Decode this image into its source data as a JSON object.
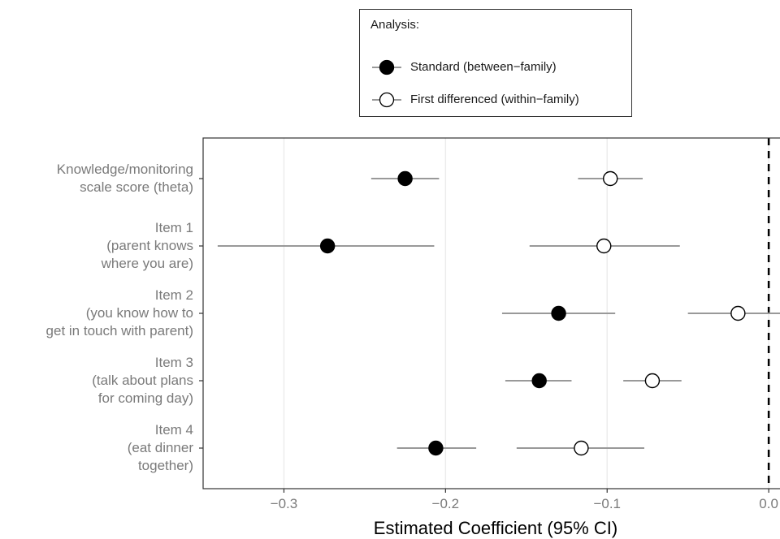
{
  "chart_data": {
    "type": "scatter",
    "subtype": "dot-and-whisker",
    "title": "",
    "xlabel": "Estimated Coefficient (95% CI)",
    "ylabel": "",
    "xlim": [
      -0.35,
      0.012
    ],
    "x_ticks": [
      -0.3,
      -0.2,
      -0.1,
      0.0
    ],
    "x_tick_labels": [
      "−0.3",
      "−0.2",
      "−0.1",
      "0.0"
    ],
    "reference_line": {
      "x": 0.0,
      "style": "dashed"
    },
    "grid": "vertical major",
    "legend": {
      "title": "Analysis:",
      "position": "top",
      "entries": [
        {
          "label": "Standard (between−family)",
          "marker": "filled-circle"
        },
        {
          "label": "First differenced (within−family)",
          "marker": "open-circle"
        }
      ]
    },
    "categories": [
      [
        "Knowledge/monitoring",
        "scale score (theta)"
      ],
      [
        "Item 1",
        "(parent knows",
        "where you are)"
      ],
      [
        "Item 2",
        "(you know how to",
        "get in touch with parent)"
      ],
      [
        "Item 3",
        "(talk about plans",
        "for coming day)"
      ],
      [
        "Item 4",
        "(eat dinner",
        "together)"
      ]
    ],
    "series": [
      {
        "name": "Standard (between−family)",
        "marker": "filled",
        "estimates": [
          -0.225,
          -0.273,
          -0.13,
          -0.142,
          -0.206
        ],
        "ci_low": [
          -0.246,
          -0.341,
          -0.165,
          -0.163,
          -0.23
        ],
        "ci_high": [
          -0.204,
          -0.207,
          -0.095,
          -0.122,
          -0.181
        ]
      },
      {
        "name": "First differenced (within−family)",
        "marker": "open",
        "estimates": [
          -0.098,
          -0.102,
          -0.019,
          -0.072,
          -0.116
        ],
        "ci_low": [
          -0.118,
          -0.148,
          -0.05,
          -0.09,
          -0.156
        ],
        "ci_high": [
          -0.078,
          -0.055,
          0.013,
          -0.054,
          -0.077
        ]
      }
    ],
    "colors": {
      "ci_line": "#999999",
      "point_fill_standard": "#000000",
      "point_fill_first_differenced": "#ffffff",
      "point_stroke": "#000000",
      "grid": "#ebebeb",
      "panel_border": "#333333",
      "axis_text": "#7a7a7a"
    }
  }
}
